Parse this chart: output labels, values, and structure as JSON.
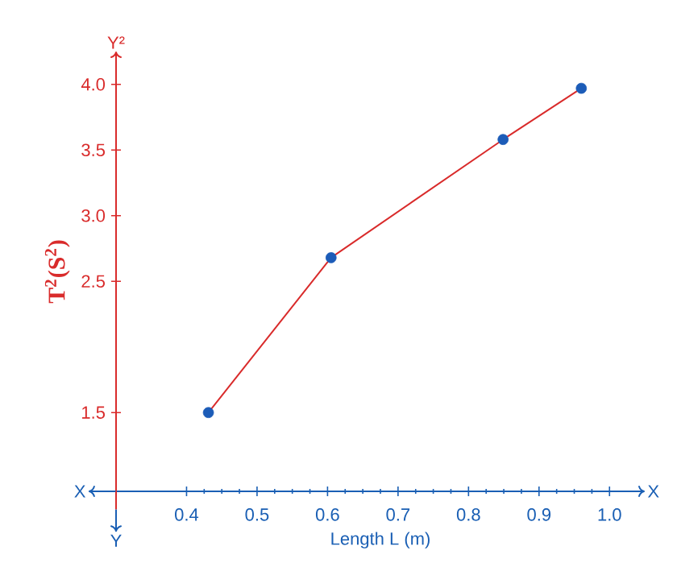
{
  "chart_data": {
    "type": "scatter",
    "xlabel": "Length L (m)",
    "ylabel": "T$^{2}$(S$^{2}$)",
    "xlim": [
      0.3,
      1.05
    ],
    "ylim": [
      0.9,
      4.25
    ],
    "xticks": [
      0.4,
      0.5,
      0.6,
      0.7,
      0.8,
      0.9,
      {
        "value": 1,
        "label": "1.0"
      }
    ],
    "yticks": [
      1.5,
      2.5,
      {
        "value": 3,
        "label": "3.0"
      },
      3.5,
      {
        "value": 4,
        "label": "4.0"
      }
    ],
    "series": [
      {
        "type": "line",
        "color": "#d92b2b",
        "x": [
          0.431,
          0.605,
          0.849,
          0.96
        ],
        "values": [
          1.5,
          2.68,
          3.58,
          3.97
        ],
        "marker": "none"
      },
      {
        "color": "#1c5cb8",
        "x": [
          0.431,
          0.605,
          0.849,
          0.96
        ],
        "values": [
          1.5,
          2.68,
          3.58,
          3.97
        ],
        "marker": "circle"
      }
    ],
    "annotations": [
      "X",
      "X",
      "Y",
      "Y²"
    ]
  }
}
